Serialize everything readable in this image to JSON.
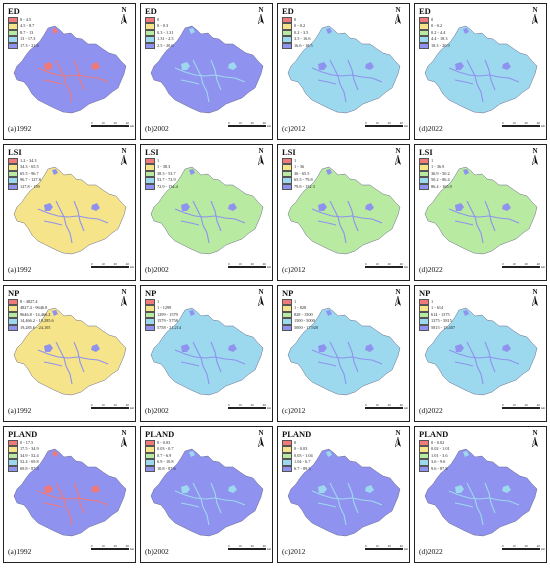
{
  "scale": {
    "ticks": [
      "0",
      "10",
      "20",
      "40"
    ],
    "unit": "km"
  },
  "north": "N",
  "colors": {
    "red": "#f0797a",
    "orange": "#f6b87c",
    "yellow": "#f6e48a",
    "green": "#b8eaa2",
    "cyan": "#9cd9ee",
    "blue": "#8f92ef"
  },
  "panels": [
    {
      "metric": "ED",
      "year": "(a)1992",
      "fill": "#8f92ef",
      "accent": "#f0797a",
      "legend": [
        {
          "label": "0 - 4.5",
          "color": "#f0797a"
        },
        {
          "label": "4.5 - 8.7",
          "color": "#f6e48a"
        },
        {
          "label": "8.7 - 13",
          "color": "#b8eaa2"
        },
        {
          "label": "13 - 17.3",
          "color": "#9cd9ee"
        },
        {
          "label": "17.3 - 21.6",
          "color": "#8f92ef"
        }
      ]
    },
    {
      "metric": "ED",
      "year": "(b)2002",
      "fill": "#8f92ef",
      "accent": "#9cd9ee",
      "legend": [
        {
          "label": "0",
          "color": "#f0797a"
        },
        {
          "label": "0 - 0.3",
          "color": "#f6e48a"
        },
        {
          "label": "0.3 - 1.31",
          "color": "#b8eaa2"
        },
        {
          "label": "1.31 - 2.5",
          "color": "#9cd9ee"
        },
        {
          "label": "2.5 - 20.6",
          "color": "#8f92ef"
        }
      ]
    },
    {
      "metric": "ED",
      "year": "(c)2012",
      "fill": "#9cd9ee",
      "accent": "#8f92ef",
      "legend": [
        {
          "label": "0",
          "color": "#f0797a"
        },
        {
          "label": "0 - 0.2",
          "color": "#f6e48a"
        },
        {
          "label": "0.2 - 3.5",
          "color": "#b8eaa2"
        },
        {
          "label": "3.5 - 16.6",
          "color": "#9cd9ee"
        },
        {
          "label": "16.6 - 18.5",
          "color": "#8f92ef"
        }
      ]
    },
    {
      "metric": "ED",
      "year": "(d)2022",
      "fill": "#9cd9ee",
      "accent": "#8f92ef",
      "legend": [
        {
          "label": "0",
          "color": "#f0797a"
        },
        {
          "label": "0 - 0.2",
          "color": "#f6e48a"
        },
        {
          "label": "0.2 - 4.4",
          "color": "#b8eaa2"
        },
        {
          "label": "4.4 - 18.3",
          "color": "#9cd9ee"
        },
        {
          "label": "18.3 - 20.9",
          "color": "#8f92ef"
        }
      ]
    },
    {
      "metric": "LSI",
      "year": "(a)1992",
      "fill": "#f6e48a",
      "accent": "#8f92ef",
      "legend": [
        {
          "label": "1.2 - 34.3",
          "color": "#f0797a"
        },
        {
          "label": "34.3 - 65.5",
          "color": "#f6e48a"
        },
        {
          "label": "65.5 - 96.7",
          "color": "#b8eaa2"
        },
        {
          "label": "96.7 - 127.8",
          "color": "#9cd9ee"
        },
        {
          "label": "127.8 - 159",
          "color": "#8f92ef"
        }
      ]
    },
    {
      "metric": "LSI",
      "year": "(b)2002",
      "fill": "#b8eaa2",
      "accent": "#8f92ef",
      "legend": [
        {
          "label": "1",
          "color": "#f0797a"
        },
        {
          "label": "1 - 38.3",
          "color": "#f6e48a"
        },
        {
          "label": "38.3 - 53.7",
          "color": "#b8eaa2"
        },
        {
          "label": "53.7 - 72.9",
          "color": "#9cd9ee"
        },
        {
          "label": "72.9 - 154.4",
          "color": "#8f92ef"
        }
      ]
    },
    {
      "metric": "LSI",
      "year": "(c)2012",
      "fill": "#b8eaa2",
      "accent": "#8f92ef",
      "legend": [
        {
          "label": "1",
          "color": "#f0797a"
        },
        {
          "label": "1 - 36",
          "color": "#f6e48a"
        },
        {
          "label": "36 - 65.5",
          "color": "#b8eaa2"
        },
        {
          "label": "65.5 - 79.8",
          "color": "#9cd9ee"
        },
        {
          "label": "79.8 - 152.3",
          "color": "#8f92ef"
        }
      ]
    },
    {
      "metric": "LSI",
      "year": "(d)2022",
      "fill": "#b8eaa2",
      "accent": "#8f92ef",
      "legend": [
        {
          "label": "1",
          "color": "#f0797a"
        },
        {
          "label": "1 - 36.9",
          "color": "#f6e48a"
        },
        {
          "label": "36.9 - 50.2",
          "color": "#b8eaa2"
        },
        {
          "label": "50.2 - 86.4",
          "color": "#9cd9ee"
        },
        {
          "label": "86.4 - 165.9",
          "color": "#8f92ef"
        }
      ]
    },
    {
      "metric": "NP",
      "year": "(a)1992",
      "fill": "#f6e48a",
      "accent": "#8f92ef",
      "legend": [
        {
          "label": "8 - 4827.4",
          "color": "#f0797a"
        },
        {
          "label": "4827.4 - 9646.8",
          "color": "#f6e48a"
        },
        {
          "label": "9646.8 - 14,466.2",
          "color": "#b8eaa2"
        },
        {
          "label": "14,466.2 - 19,285.6",
          "color": "#9cd9ee"
        },
        {
          "label": "19,285.6 - 24,105",
          "color": "#8f92ef"
        }
      ]
    },
    {
      "metric": "NP",
      "year": "(b)2002",
      "fill": "#9cd9ee",
      "accent": "#8f92ef",
      "legend": [
        {
          "label": "1",
          "color": "#f0797a"
        },
        {
          "label": "1 - 1299",
          "color": "#f6e48a"
        },
        {
          "label": "1299 - 1579",
          "color": "#b8eaa2"
        },
        {
          "label": "1579 - 5758",
          "color": "#9cd9ee"
        },
        {
          "label": "5758 - 21,214",
          "color": "#8f92ef"
        }
      ]
    },
    {
      "metric": "NP",
      "year": "(c)2012",
      "fill": "#9cd9ee",
      "accent": "#8f92ef",
      "legend": [
        {
          "label": "1",
          "color": "#f0797a"
        },
        {
          "label": "1 - 828",
          "color": "#f6e48a"
        },
        {
          "label": "828 - 1500",
          "color": "#b8eaa2"
        },
        {
          "label": "1500 - 5000",
          "color": "#9cd9ee"
        },
        {
          "label": "5000 - 17,920",
          "color": "#8f92ef"
        }
      ]
    },
    {
      "metric": "NP",
      "year": "(d)2022",
      "fill": "#9cd9ee",
      "accent": "#8f92ef",
      "legend": [
        {
          "label": "1",
          "color": "#f0797a"
        },
        {
          "label": "1 - 614",
          "color": "#f6e48a"
        },
        {
          "label": "614 - 1375",
          "color": "#b8eaa2"
        },
        {
          "label": "1375 - 5815",
          "color": "#9cd9ee"
        },
        {
          "label": "5815 - 15,407",
          "color": "#8f92ef"
        }
      ]
    },
    {
      "metric": "PLAND",
      "year": "(a)1992",
      "fill": "#8f92ef",
      "accent": "#f0797a",
      "legend": [
        {
          "label": "0 - 17.5",
          "color": "#f0797a"
        },
        {
          "label": "17.5 - 34.9",
          "color": "#f6e48a"
        },
        {
          "label": "34.9 - 52.4",
          "color": "#b8eaa2"
        },
        {
          "label": "52.4 - 69.8",
          "color": "#9cd9ee"
        },
        {
          "label": "69.8 - 87.3",
          "color": "#8f92ef"
        }
      ]
    },
    {
      "metric": "PLAND",
      "year": "(b)2002",
      "fill": "#8f92ef",
      "accent": "#9cd9ee",
      "legend": [
        {
          "label": "0 - 0.03",
          "color": "#f0797a"
        },
        {
          "label": "0.03 - 0.7",
          "color": "#f6e48a"
        },
        {
          "label": "0.7 - 6.9",
          "color": "#b8eaa2"
        },
        {
          "label": "6.9 - 10.8",
          "color": "#9cd9ee"
        },
        {
          "label": "10.8 - 87.6",
          "color": "#8f92ef"
        }
      ]
    },
    {
      "metric": "PLAND",
      "year": "(c)2012",
      "fill": "#8f92ef",
      "accent": "#9cd9ee",
      "legend": [
        {
          "label": "0",
          "color": "#f0797a"
        },
        {
          "label": "0 - 0.03",
          "color": "#f6e48a"
        },
        {
          "label": "0.03 - 1.04",
          "color": "#b8eaa2"
        },
        {
          "label": "1.04 - 6.7",
          "color": "#9cd9ee"
        },
        {
          "label": "6.7 - 89.3",
          "color": "#8f92ef"
        }
      ]
    },
    {
      "metric": "PLAND",
      "year": "(d)2022",
      "fill": "#8f92ef",
      "accent": "#9cd9ee",
      "legend": [
        {
          "label": "0 - 0.02",
          "color": "#f0797a"
        },
        {
          "label": "0.02 - 1.01",
          "color": "#f6e48a"
        },
        {
          "label": "1.01 - 3.6",
          "color": "#b8eaa2"
        },
        {
          "label": "3.6 - 9.6",
          "color": "#9cd9ee"
        },
        {
          "label": "9.6 - 87.8",
          "color": "#8f92ef"
        }
      ]
    }
  ]
}
